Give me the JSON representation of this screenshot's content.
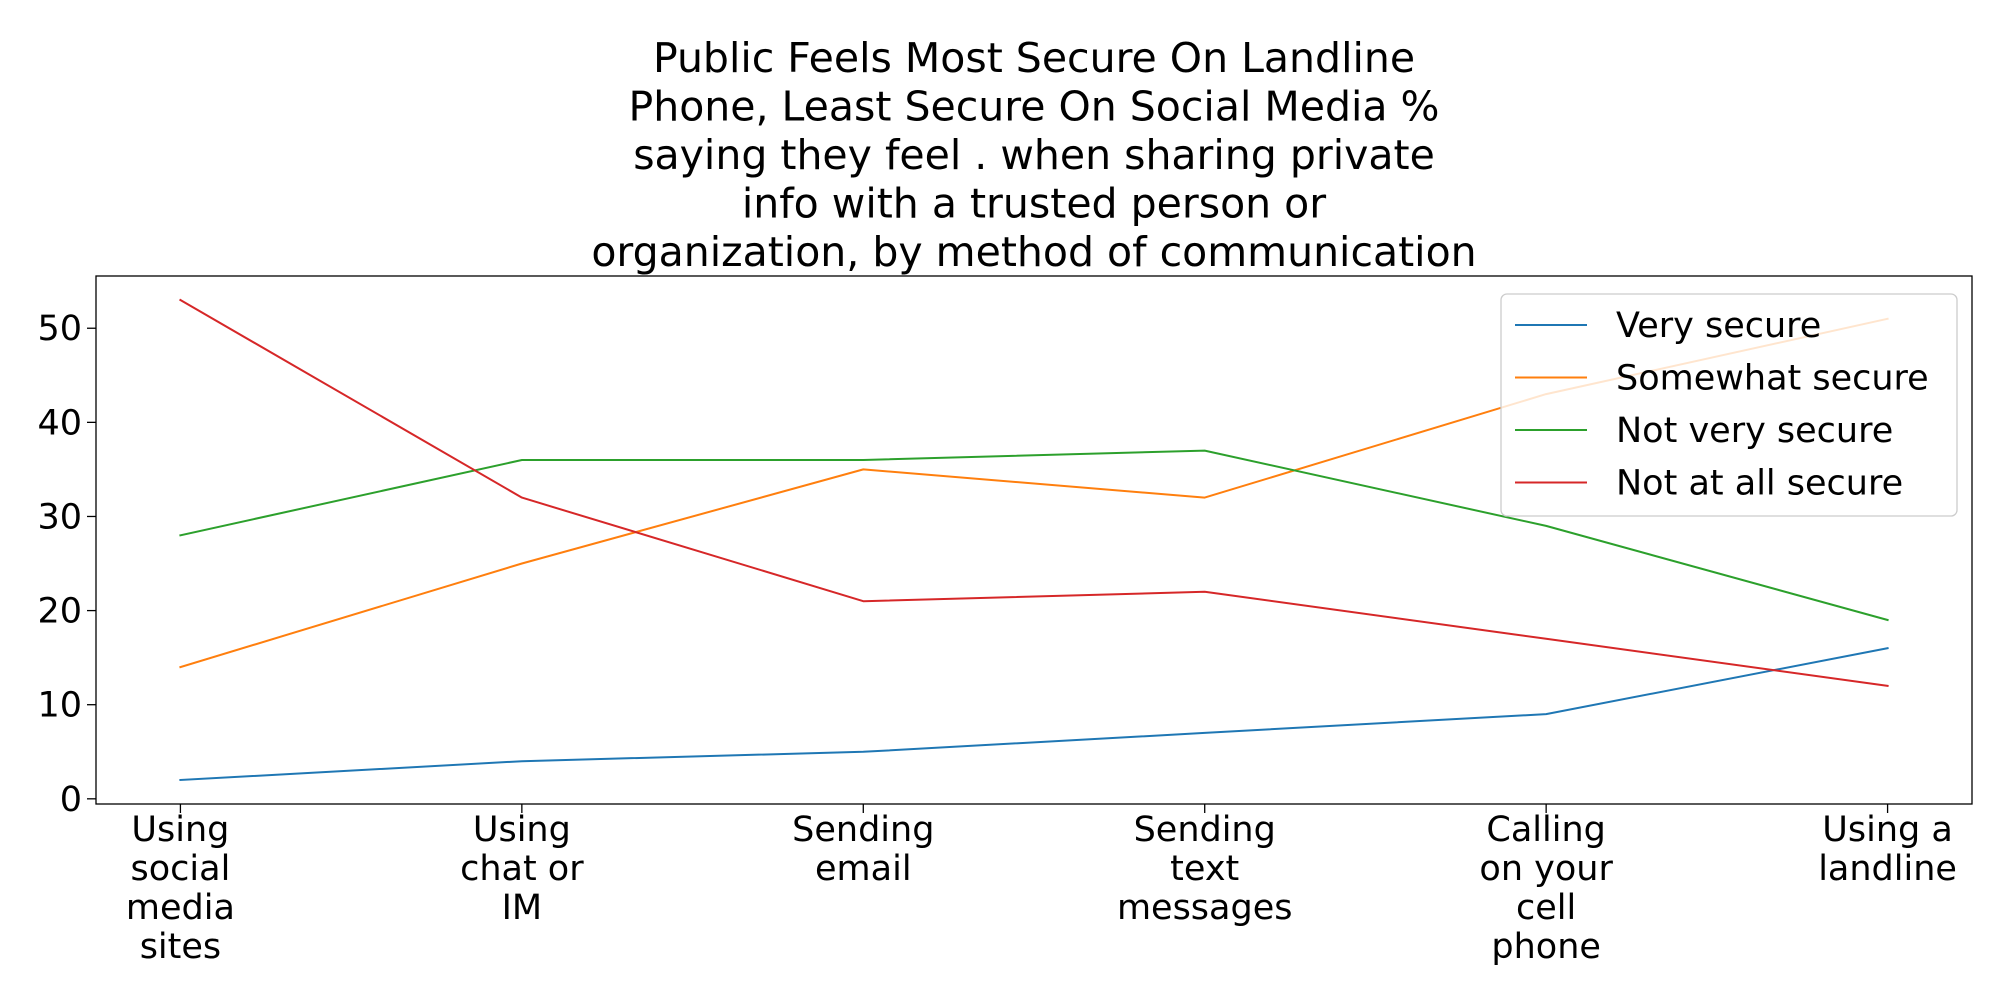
{
  "chart_data": {
    "type": "line",
    "title_lines": [
      "Public Feels Most Secure On Landline",
      "Phone, Least Secure On Social Media %",
      "saying they feel . when sharing private",
      "info with a trusted person or",
      "organization, by method of communication"
    ],
    "categories": [
      [
        "Using",
        "social",
        "media",
        "sites"
      ],
      [
        "Using",
        "chat or",
        "IM"
      ],
      [
        "Sending",
        "email"
      ],
      [
        "Sending",
        "text",
        "messages"
      ],
      [
        "Calling",
        "on your",
        "cell",
        "phone"
      ],
      [
        "Using a",
        "landline"
      ]
    ],
    "series": [
      {
        "name": "Very secure",
        "color": "#1f77b4",
        "values": [
          2,
          4,
          5,
          7,
          9,
          16
        ]
      },
      {
        "name": "Somewhat secure",
        "color": "#ff7f0e",
        "values": [
          14,
          25,
          35,
          32,
          43,
          51
        ]
      },
      {
        "name": "Not very secure",
        "color": "#2ca02c",
        "values": [
          28,
          36,
          36,
          37,
          29,
          19
        ]
      },
      {
        "name": "Not at all secure",
        "color": "#d62728",
        "values": [
          53,
          32,
          21,
          22,
          17,
          12
        ]
      }
    ],
    "y_ticks": [
      0,
      10,
      20,
      30,
      40,
      50
    ],
    "ylim": [
      -0.55,
      55.55
    ],
    "grid": false,
    "legend_position": "top-right"
  }
}
